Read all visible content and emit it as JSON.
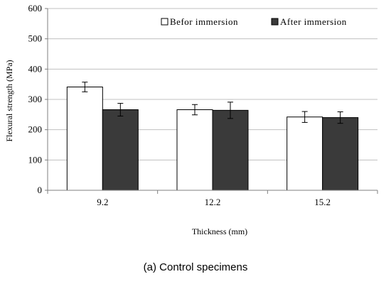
{
  "chart_data": {
    "type": "bar",
    "categories": [
      "9.2",
      "12.2",
      "15.2"
    ],
    "series": [
      {
        "name": "Befor immersion",
        "values": [
          341,
          266,
          242
        ],
        "errors": [
          16,
          17,
          18
        ],
        "color": "#ffffff"
      },
      {
        "name": "After immersion",
        "values": [
          266,
          264,
          240
        ],
        "errors": [
          21,
          27,
          19
        ],
        "color": "#3a3a3a"
      }
    ],
    "title": "",
    "xlabel": "Thickness  (mm)",
    "ylabel": "Flexural  strength  (MPa)",
    "ylim": [
      0,
      600
    ],
    "yticks": [
      0,
      100,
      200,
      300,
      400,
      500,
      600
    ],
    "grid": true,
    "legend_position": "top-right"
  },
  "caption": "(a) Control specimens"
}
